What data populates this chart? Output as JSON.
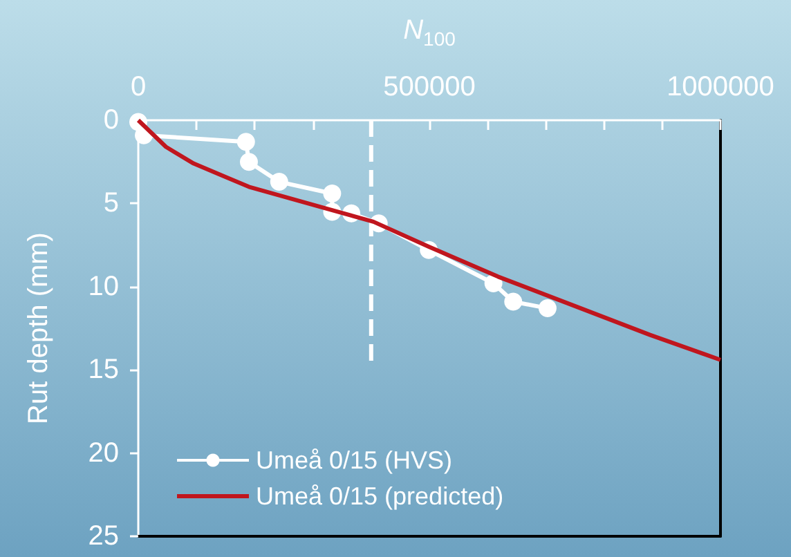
{
  "chart_data": {
    "type": "line",
    "xlabel": "N$_{100}$",
    "ylabel": "Rut depth (mm)",
    "xlim": [
      0,
      1000000
    ],
    "ylim": [
      25,
      0
    ],
    "xticks": [
      0,
      {
        "value": 100000,
        "label": null
      },
      {
        "value": 200000,
        "label": null
      },
      {
        "value": 300000,
        "label": null
      },
      {
        "value": 400000,
        "label": null
      },
      500000,
      {
        "value": 600000,
        "label": null
      },
      {
        "value": 700000,
        "label": null
      },
      {
        "value": 800000,
        "label": null
      },
      {
        "value": 900000,
        "label": null
      },
      1000000
    ],
    "yticks": [
      0,
      5,
      10,
      15,
      20,
      25
    ],
    "grid": false,
    "legend": "bottom left",
    "line_style": "solid",
    "series": [
      {
        "name": "Umeå 0/15 (HVS)",
        "color": "#ffffff",
        "marker": "circle",
        "x": [
          0,
          9500,
          185000,
          190000,
          242000,
          333000,
          333000,
          366000,
          413000,
          499000,
          610000,
          644000,
          703000
        ],
        "values": [
          0.1,
          0.9,
          1.3,
          2.5,
          3.7,
          4.4,
          5.5,
          5.6,
          6.2,
          7.8,
          9.8,
          10.9,
          11.3
        ]
      },
      {
        "name": "Umeå 0/15 (predicted)",
        "color": "#c0161e",
        "marker": "none",
        "x": [
          0,
          47500,
          95000,
          190000,
          333000,
          404000,
          499000,
          618000,
          760000,
          879000,
          1000000
        ],
        "values": [
          0,
          1.6,
          2.6,
          4.0,
          5.4,
          6.1,
          7.6,
          9.4,
          11.3,
          12.9,
          14.4
        ]
      },
      {
        "color": "#ffffff",
        "marker": "none",
        "line_style": "dashed",
        "x": [
          400000,
          400000
        ],
        "values": [
          0,
          14.6
        ]
      }
    ]
  }
}
